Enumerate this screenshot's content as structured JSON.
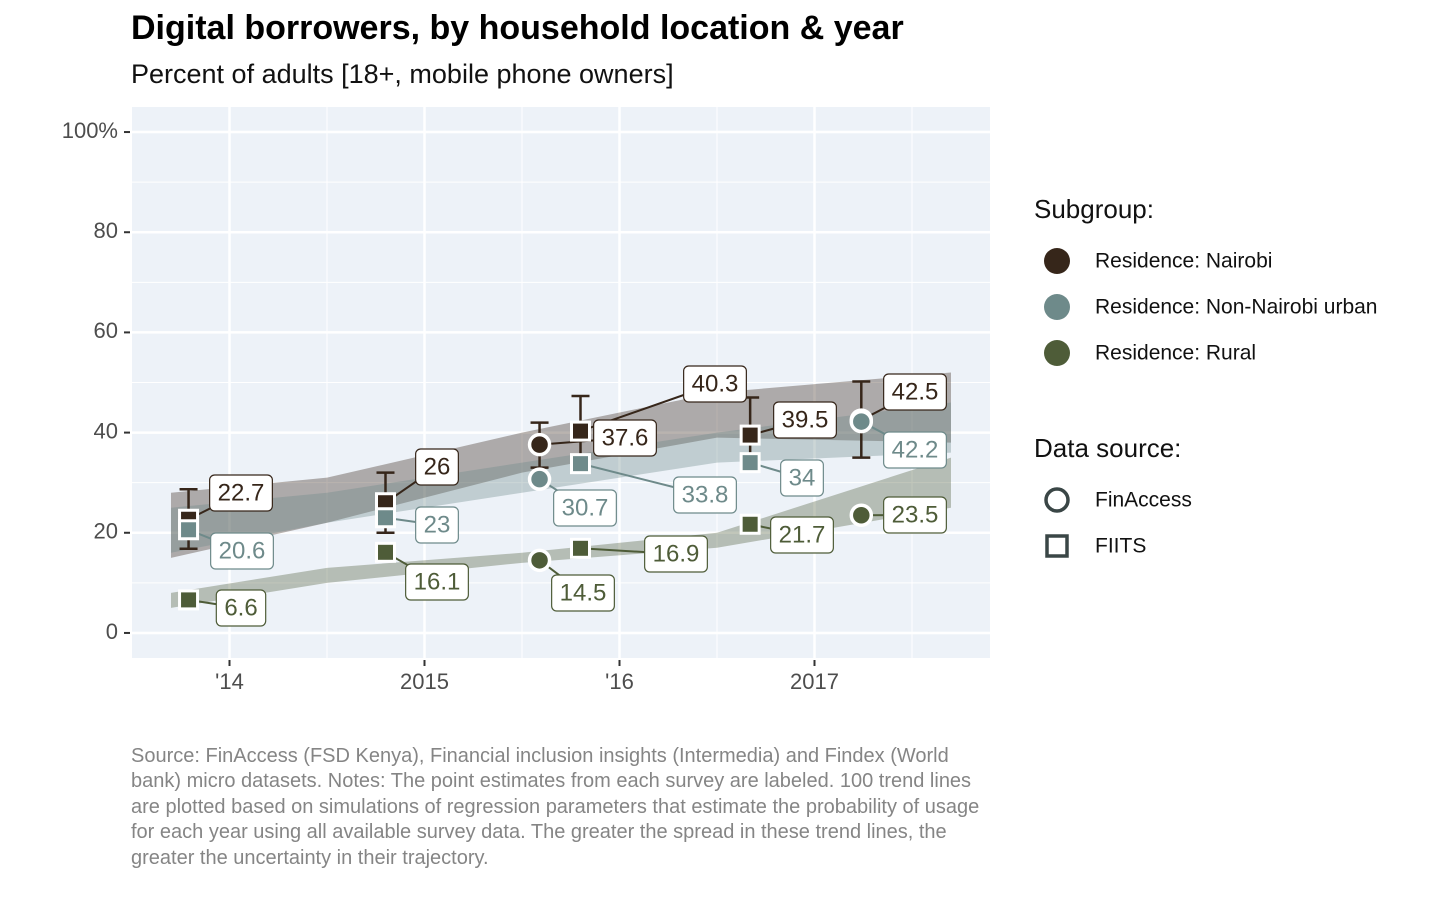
{
  "chart_data": {
    "type": "line",
    "title": "Digital borrowers, by household location & year",
    "subtitle": "Percent of adults [18+, mobile phone owners]",
    "caption": "Source: FinAccess (FSD Kenya), Financial inclusion insights (Intermedia) and Findex (World bank) micro datasets. Notes: The point estimates from each survey are labeled. 100 trend lines are plotted based on simulations of regression parameters that estimate the probability of usage for each year using all available survey data. The greater the spread in these trend lines, the greater the uncertainty in their trajectory.",
    "x": [
      2013.79,
      2014.8,
      2015.59,
      2015.8,
      2016.67,
      2017.24
    ],
    "source": [
      1,
      1,
      0,
      1,
      1,
      0
    ],
    "trend_x": [
      2013.7,
      2014.5,
      2015.5,
      2016.5,
      2017.7
    ],
    "series": [
      {
        "name": "Residence: Nairobi",
        "color": "#36261a",
        "values": [
          22.7,
          26,
          37.6,
          40.3,
          39.5,
          42.5
        ],
        "lower": [
          16.8,
          20,
          33,
          33,
          33,
          35
        ],
        "upper": [
          28.7,
          32,
          42,
          47.3,
          47,
          50.2
        ],
        "trend_low": [
          15,
          22,
          32,
          39,
          38
        ],
        "trend_high": [
          28,
          31,
          40,
          48,
          52
        ]
      },
      {
        "name": "Residence: Non-Nairobi urban",
        "color": "#6e8a8a",
        "values": [
          20.6,
          23,
          30.7,
          33.8,
          34,
          42.2
        ],
        "trend_low": [
          16,
          22,
          28,
          34,
          36
        ],
        "trend_high": [
          25,
          28,
          34,
          40,
          46
        ]
      },
      {
        "name": "Residence: Rural",
        "color": "#4e5c38",
        "values": [
          6.6,
          16.1,
          14.5,
          16.9,
          21.7,
          23.5
        ],
        "trend_low": [
          5,
          10,
          14,
          17,
          25
        ],
        "trend_high": [
          8,
          13,
          16,
          20,
          35
        ]
      }
    ],
    "legend_title": "Subgroup:",
    "source_legend_title": "Data source:",
    "source_legend": [
      {
        "label": "FinAccess",
        "marker": "circle"
      },
      {
        "label": "FIITS",
        "marker": "square"
      }
    ],
    "xlim": [
      2013.5,
      2017.9
    ],
    "xticks": [
      {
        "value": 2014,
        "label": "'14"
      },
      2015,
      {
        "value": 2016,
        "label": "'16"
      },
      2017
    ],
    "ylim": [
      -5,
      105
    ],
    "yticks": [
      0,
      20,
      40,
      60,
      80,
      {
        "value": 100,
        "label": "100%"
      }
    ],
    "grid": true
  }
}
